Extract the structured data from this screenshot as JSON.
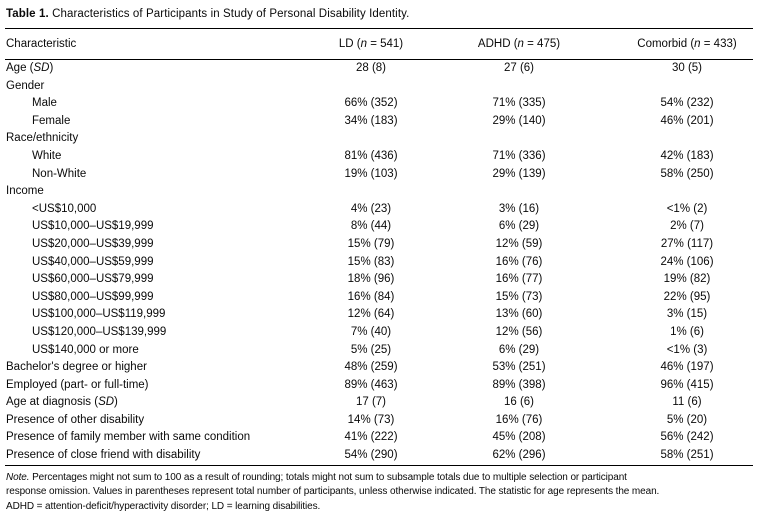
{
  "title": {
    "bold": "Table 1.",
    "rest": " Characteristics of Participants in Study of Personal Disability Identity."
  },
  "table": {
    "columns": [
      {
        "segments": [
          {
            "t": "Characteristic"
          }
        ]
      },
      {
        "segments": [
          {
            "t": "LD ("
          },
          {
            "t": "n",
            "i": true
          },
          {
            "t": " = 541)"
          }
        ]
      },
      {
        "segments": [
          {
            "t": "ADHD ("
          },
          {
            "t": "n",
            "i": true
          },
          {
            "t": " = 475)"
          }
        ]
      },
      {
        "segments": [
          {
            "t": "Comorbid ("
          },
          {
            "t": "n",
            "i": true
          },
          {
            "t": " = 433)"
          }
        ]
      }
    ],
    "rows": [
      {
        "label": [
          {
            "t": "Age ("
          },
          {
            "t": "SD",
            "i": true
          },
          {
            "t": ")"
          }
        ],
        "indent": false,
        "values": [
          "28 (8)",
          "27 (6)",
          "30 (5)"
        ]
      },
      {
        "label": [
          {
            "t": "Gender"
          }
        ],
        "indent": false,
        "values": [
          "",
          "",
          ""
        ]
      },
      {
        "label": [
          {
            "t": "Male"
          }
        ],
        "indent": true,
        "values": [
          "66% (352)",
          "71% (335)",
          "54% (232)"
        ]
      },
      {
        "label": [
          {
            "t": "Female"
          }
        ],
        "indent": true,
        "values": [
          "34% (183)",
          "29% (140)",
          "46% (201)"
        ]
      },
      {
        "label": [
          {
            "t": "Race/ethnicity"
          }
        ],
        "indent": false,
        "values": [
          "",
          "",
          ""
        ]
      },
      {
        "label": [
          {
            "t": "White"
          }
        ],
        "indent": true,
        "values": [
          "81% (436)",
          "71% (336)",
          "42% (183)"
        ]
      },
      {
        "label": [
          {
            "t": "Non-White"
          }
        ],
        "indent": true,
        "values": [
          "19% (103)",
          "29% (139)",
          "58% (250)"
        ]
      },
      {
        "label": [
          {
            "t": "Income"
          }
        ],
        "indent": false,
        "values": [
          "",
          "",
          ""
        ]
      },
      {
        "label": [
          {
            "t": "<US$10,000"
          }
        ],
        "indent": true,
        "values": [
          "4% (23)",
          "3% (16)",
          "<1% (2)"
        ]
      },
      {
        "label": [
          {
            "t": "US$10,000–US$19,999"
          }
        ],
        "indent": true,
        "values": [
          "8% (44)",
          "6% (29)",
          "2% (7)"
        ]
      },
      {
        "label": [
          {
            "t": "US$20,000–US$39,999"
          }
        ],
        "indent": true,
        "values": [
          "15% (79)",
          "12% (59)",
          "27% (117)"
        ]
      },
      {
        "label": [
          {
            "t": "US$40,000–US$59,999"
          }
        ],
        "indent": true,
        "values": [
          "15% (83)",
          "16% (76)",
          "24% (106)"
        ]
      },
      {
        "label": [
          {
            "t": "US$60,000–US$79,999"
          }
        ],
        "indent": true,
        "values": [
          "18% (96)",
          "16% (77)",
          "19% (82)"
        ]
      },
      {
        "label": [
          {
            "t": "US$80,000–US$99,999"
          }
        ],
        "indent": true,
        "values": [
          "16% (84)",
          "15% (73)",
          "22% (95)"
        ]
      },
      {
        "label": [
          {
            "t": "US$100,000–US$119,999"
          }
        ],
        "indent": true,
        "values": [
          "12% (64)",
          "13% (60)",
          "3% (15)"
        ]
      },
      {
        "label": [
          {
            "t": "US$120,000–US$139,999"
          }
        ],
        "indent": true,
        "values": [
          "7% (40)",
          "12% (56)",
          "1% (6)"
        ]
      },
      {
        "label": [
          {
            "t": "US$140,000 or more"
          }
        ],
        "indent": true,
        "values": [
          "5% (25)",
          "6% (29)",
          "<1% (3)"
        ]
      },
      {
        "label": [
          {
            "t": "Bachelor's degree or higher"
          }
        ],
        "indent": false,
        "values": [
          "48% (259)",
          "53% (251)",
          "46% (197)"
        ]
      },
      {
        "label": [
          {
            "t": "Employed (part- or full-time)"
          }
        ],
        "indent": false,
        "values": [
          "89% (463)",
          "89% (398)",
          "96% (415)"
        ]
      },
      {
        "label": [
          {
            "t": "Age at diagnosis ("
          },
          {
            "t": "SD",
            "i": true
          },
          {
            "t": ")"
          }
        ],
        "indent": false,
        "values": [
          "17 (7)",
          "16 (6)",
          "11 (6)"
        ]
      },
      {
        "label": [
          {
            "t": "Presence of other disability"
          }
        ],
        "indent": false,
        "values": [
          "14% (73)",
          "16% (76)",
          "5% (20)"
        ]
      },
      {
        "label": [
          {
            "t": "Presence of family member with same condition"
          }
        ],
        "indent": false,
        "values": [
          "41% (222)",
          "45% (208)",
          "56% (242)"
        ]
      },
      {
        "label": [
          {
            "t": "Presence of close friend with disability"
          }
        ],
        "indent": false,
        "values": [
          "54% (290)",
          "62% (296)",
          "58% (251)"
        ]
      }
    ]
  },
  "note": {
    "lines": [
      {
        "lead": "Note.",
        "text": " Percentages might not sum to 100 as a result of rounding; totals might not sum to subsample totals due to multiple selection or participant"
      },
      {
        "lead": "",
        "text": "response omission. Values in parentheses represent total number of participants, unless otherwise indicated. The statistic for age represents the mean."
      },
      {
        "lead": "",
        "text": "ADHD = attention-deficit/hyperactivity disorder; LD = learning disabilities."
      }
    ]
  },
  "colors": {
    "text": "#0a0a0a",
    "rule": "#000000",
    "background": "#ffffff"
  }
}
